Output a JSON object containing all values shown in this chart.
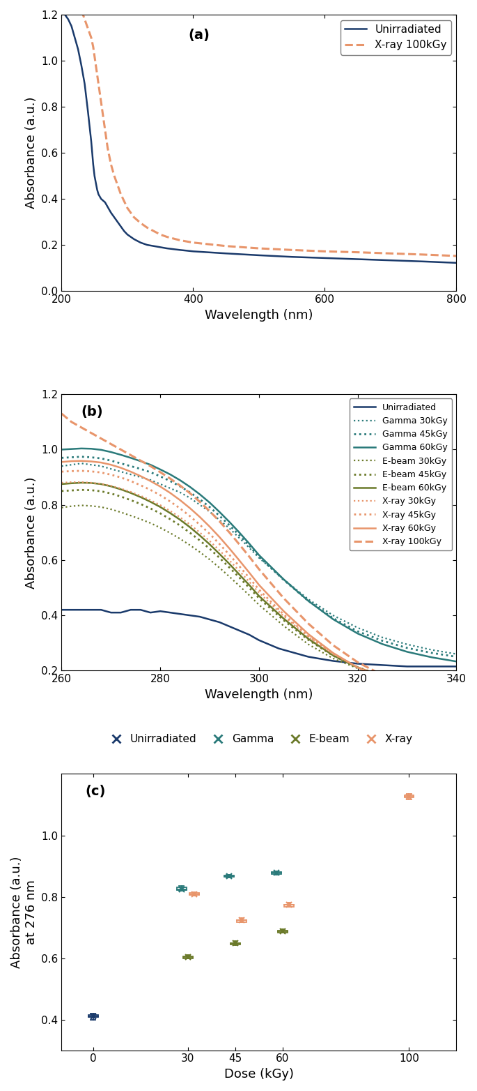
{
  "panel_a": {
    "title": "(a)",
    "xlim": [
      200,
      800
    ],
    "ylim": [
      0,
      1.2
    ],
    "xlabel": "Wavelength (nm)",
    "ylabel": "Absorbance (a.u.)",
    "xticks": [
      200,
      400,
      600,
      800
    ],
    "yticks": [
      0,
      0.2,
      0.4,
      0.6,
      0.8,
      1.0,
      1.2
    ],
    "unirradiated_x": [
      200,
      205,
      210,
      215,
      220,
      225,
      230,
      235,
      240,
      245,
      248,
      250,
      252,
      254,
      256,
      258,
      260,
      262,
      264,
      266,
      268,
      270,
      275,
      280,
      285,
      290,
      295,
      300,
      310,
      320,
      330,
      340,
      350,
      360,
      380,
      400,
      450,
      500,
      550,
      600,
      650,
      700,
      750,
      800
    ],
    "unirradiated_y": [
      1.22,
      1.2,
      1.18,
      1.15,
      1.1,
      1.05,
      0.98,
      0.9,
      0.78,
      0.65,
      0.55,
      0.5,
      0.47,
      0.44,
      0.42,
      0.41,
      0.4,
      0.395,
      0.39,
      0.385,
      0.375,
      0.365,
      0.34,
      0.32,
      0.3,
      0.28,
      0.26,
      0.245,
      0.225,
      0.21,
      0.2,
      0.195,
      0.19,
      0.185,
      0.178,
      0.172,
      0.163,
      0.155,
      0.148,
      0.143,
      0.138,
      0.133,
      0.128,
      0.122
    ],
    "xray100_x": [
      230,
      235,
      240,
      245,
      248,
      250,
      252,
      254,
      256,
      258,
      260,
      262,
      264,
      266,
      268,
      270,
      275,
      280,
      285,
      290,
      295,
      300,
      310,
      320,
      330,
      340,
      350,
      360,
      380,
      400,
      450,
      500,
      550,
      600,
      650,
      700,
      750,
      800
    ],
    "xray100_y": [
      1.22,
      1.18,
      1.14,
      1.1,
      1.06,
      1.02,
      0.98,
      0.94,
      0.9,
      0.86,
      0.82,
      0.78,
      0.74,
      0.7,
      0.66,
      0.62,
      0.55,
      0.5,
      0.46,
      0.42,
      0.39,
      0.36,
      0.32,
      0.295,
      0.275,
      0.26,
      0.245,
      0.235,
      0.22,
      0.21,
      0.195,
      0.185,
      0.178,
      0.172,
      0.168,
      0.163,
      0.158,
      0.152
    ],
    "color_unirradiated": "#1a3a6b",
    "color_xray100": "#e8956b",
    "ls_unirradiated": "solid",
    "ls_xray100": "dashed",
    "lw_unirradiated": 1.8,
    "lw_xray100": 2.2,
    "legend_labels": [
      "Unirradiated",
      "X-ray 100kGy"
    ]
  },
  "panel_b": {
    "title": "(b)",
    "xlim": [
      260,
      340
    ],
    "ylim": [
      0.2,
      1.2
    ],
    "xlabel": "Wavelength (nm)",
    "ylabel": "Absorbance (a.u.)",
    "xticks": [
      260,
      280,
      300,
      320,
      340
    ],
    "yticks": [
      0.2,
      0.4,
      0.6,
      0.8,
      1.0,
      1.2
    ],
    "curves": [
      {
        "label": "Unirradiated",
        "color": "#1a3a6b",
        "ls": "solid",
        "lw": 1.8,
        "x": [
          260,
          262,
          264,
          266,
          268,
          270,
          272,
          274,
          276,
          278,
          280,
          282,
          284,
          286,
          288,
          290,
          292,
          294,
          296,
          298,
          300,
          302,
          304,
          306,
          308,
          310,
          315,
          320,
          325,
          330,
          335,
          340
        ],
        "y": [
          0.42,
          0.42,
          0.42,
          0.42,
          0.42,
          0.41,
          0.41,
          0.42,
          0.42,
          0.41,
          0.415,
          0.41,
          0.405,
          0.4,
          0.395,
          0.385,
          0.375,
          0.36,
          0.345,
          0.33,
          0.31,
          0.295,
          0.28,
          0.27,
          0.26,
          0.25,
          0.235,
          0.225,
          0.22,
          0.215,
          0.215,
          0.215
        ]
      },
      {
        "label": "Gamma 30kGy",
        "color": "#2a7a7a",
        "ls": "dotted",
        "lw": 1.6,
        "x": [
          260,
          262,
          264,
          266,
          268,
          270,
          272,
          274,
          276,
          278,
          280,
          282,
          284,
          286,
          288,
          290,
          292,
          294,
          296,
          298,
          300,
          305,
          310,
          315,
          320,
          325,
          330,
          335,
          340
        ],
        "y": [
          0.94,
          0.945,
          0.95,
          0.945,
          0.94,
          0.93,
          0.92,
          0.91,
          0.9,
          0.89,
          0.875,
          0.86,
          0.845,
          0.825,
          0.8,
          0.775,
          0.745,
          0.715,
          0.68,
          0.645,
          0.608,
          0.53,
          0.458,
          0.4,
          0.355,
          0.32,
          0.295,
          0.275,
          0.26
        ]
      },
      {
        "label": "Gamma 45kGy",
        "color": "#2a7a7a",
        "ls": "dotted",
        "lw": 2.0,
        "x": [
          260,
          262,
          264,
          266,
          268,
          270,
          272,
          274,
          276,
          278,
          280,
          282,
          284,
          286,
          288,
          290,
          292,
          294,
          296,
          298,
          300,
          305,
          310,
          315,
          320,
          325,
          330,
          335,
          340
        ],
        "y": [
          0.97,
          0.972,
          0.974,
          0.972,
          0.968,
          0.96,
          0.95,
          0.94,
          0.93,
          0.918,
          0.903,
          0.886,
          0.867,
          0.845,
          0.82,
          0.792,
          0.76,
          0.726,
          0.69,
          0.652,
          0.612,
          0.528,
          0.452,
          0.39,
          0.342,
          0.308,
          0.282,
          0.264,
          0.25
        ]
      },
      {
        "label": "Gamma 60kGy",
        "color": "#2a7a7a",
        "ls": "solid",
        "lw": 1.8,
        "x": [
          260,
          262,
          264,
          266,
          268,
          270,
          272,
          274,
          276,
          278,
          280,
          282,
          284,
          286,
          288,
          290,
          292,
          294,
          296,
          298,
          300,
          305,
          310,
          315,
          320,
          325,
          330,
          335,
          340
        ],
        "y": [
          1.0,
          1.002,
          1.004,
          1.003,
          0.999,
          0.991,
          0.981,
          0.97,
          0.958,
          0.945,
          0.928,
          0.91,
          0.889,
          0.865,
          0.838,
          0.808,
          0.774,
          0.738,
          0.7,
          0.66,
          0.618,
          0.53,
          0.452,
          0.386,
          0.334,
          0.296,
          0.268,
          0.248,
          0.233
        ]
      },
      {
        "label": "E-beam 30kGy",
        "color": "#6b7a2a",
        "ls": "dotted",
        "lw": 1.6,
        "x": [
          260,
          262,
          264,
          266,
          268,
          270,
          272,
          274,
          276,
          278,
          280,
          282,
          284,
          286,
          288,
          290,
          292,
          294,
          296,
          298,
          300,
          305,
          310,
          315,
          320,
          325,
          330,
          335,
          340
        ],
        "y": [
          0.79,
          0.795,
          0.798,
          0.796,
          0.792,
          0.784,
          0.773,
          0.761,
          0.748,
          0.734,
          0.717,
          0.698,
          0.677,
          0.654,
          0.629,
          0.602,
          0.572,
          0.54,
          0.507,
          0.473,
          0.438,
          0.362,
          0.295,
          0.244,
          0.208,
          0.182,
          0.163,
          0.15,
          0.14
        ]
      },
      {
        "label": "E-beam 45kGy",
        "color": "#6b7a2a",
        "ls": "dotted",
        "lw": 2.0,
        "x": [
          260,
          262,
          264,
          266,
          268,
          270,
          272,
          274,
          276,
          278,
          280,
          282,
          284,
          286,
          288,
          290,
          292,
          294,
          296,
          298,
          300,
          305,
          310,
          315,
          320,
          325,
          330,
          335,
          340
        ],
        "y": [
          0.85,
          0.852,
          0.854,
          0.853,
          0.849,
          0.841,
          0.83,
          0.817,
          0.803,
          0.787,
          0.769,
          0.748,
          0.725,
          0.699,
          0.671,
          0.641,
          0.608,
          0.573,
          0.537,
          0.5,
          0.462,
          0.382,
          0.311,
          0.254,
          0.212,
          0.182,
          0.161,
          0.146,
          0.136
        ]
      },
      {
        "label": "E-beam 60kGy",
        "color": "#6b7a2a",
        "ls": "solid",
        "lw": 1.8,
        "x": [
          260,
          262,
          264,
          266,
          268,
          270,
          272,
          274,
          276,
          278,
          280,
          282,
          284,
          286,
          288,
          290,
          292,
          294,
          296,
          298,
          300,
          305,
          310,
          315,
          320,
          325,
          330,
          335,
          340
        ],
        "y": [
          0.875,
          0.878,
          0.88,
          0.879,
          0.875,
          0.867,
          0.856,
          0.843,
          0.828,
          0.811,
          0.792,
          0.77,
          0.746,
          0.719,
          0.689,
          0.657,
          0.622,
          0.586,
          0.548,
          0.51,
          0.47,
          0.388,
          0.315,
          0.255,
          0.211,
          0.18,
          0.159,
          0.144,
          0.134
        ]
      },
      {
        "label": "X-ray 30kGy",
        "color": "#e8956b",
        "ls": "dotted",
        "lw": 1.6,
        "x": [
          260,
          262,
          264,
          266,
          268,
          270,
          272,
          274,
          276,
          278,
          280,
          282,
          284,
          286,
          288,
          290,
          292,
          294,
          296,
          298,
          300,
          305,
          310,
          315,
          320,
          325,
          330,
          335,
          340
        ],
        "y": [
          0.88,
          0.882,
          0.882,
          0.88,
          0.876,
          0.869,
          0.859,
          0.847,
          0.833,
          0.817,
          0.799,
          0.778,
          0.755,
          0.729,
          0.7,
          0.669,
          0.635,
          0.599,
          0.561,
          0.522,
          0.482,
          0.397,
          0.322,
          0.26,
          0.213,
          0.179,
          0.156,
          0.14,
          0.128
        ]
      },
      {
        "label": "X-ray 45kGy",
        "color": "#e8956b",
        "ls": "dotted",
        "lw": 2.0,
        "x": [
          260,
          262,
          264,
          266,
          268,
          270,
          272,
          274,
          276,
          278,
          280,
          282,
          284,
          286,
          288,
          290,
          292,
          294,
          296,
          298,
          300,
          305,
          310,
          315,
          320,
          325,
          330,
          335,
          340
        ],
        "y": [
          0.92,
          0.922,
          0.923,
          0.921,
          0.917,
          0.909,
          0.899,
          0.886,
          0.871,
          0.854,
          0.835,
          0.812,
          0.787,
          0.759,
          0.728,
          0.695,
          0.658,
          0.619,
          0.578,
          0.536,
          0.493,
          0.403,
          0.325,
          0.261,
          0.212,
          0.177,
          0.153,
          0.137,
          0.125
        ]
      },
      {
        "label": "X-ray 60kGy",
        "color": "#e8956b",
        "ls": "solid",
        "lw": 1.8,
        "x": [
          260,
          262,
          264,
          266,
          268,
          270,
          272,
          274,
          276,
          278,
          280,
          282,
          284,
          286,
          288,
          290,
          292,
          294,
          296,
          298,
          300,
          305,
          310,
          315,
          320,
          325,
          330,
          335,
          340
        ],
        "y": [
          0.955,
          0.958,
          0.959,
          0.957,
          0.953,
          0.945,
          0.934,
          0.92,
          0.904,
          0.886,
          0.866,
          0.843,
          0.817,
          0.788,
          0.756,
          0.721,
          0.683,
          0.642,
          0.599,
          0.555,
          0.51,
          0.415,
          0.332,
          0.264,
          0.211,
          0.173,
          0.147,
          0.13,
          0.117
        ]
      },
      {
        "label": "X-ray 100kGy",
        "color": "#e8956b",
        "ls": "dashed",
        "lw": 2.2,
        "x": [
          260,
          262,
          264,
          266,
          268,
          270,
          272,
          274,
          276,
          278,
          280,
          282,
          284,
          286,
          288,
          290,
          292,
          294,
          296,
          298,
          300,
          305,
          310,
          315,
          320,
          325,
          330,
          335,
          340
        ],
        "y": [
          1.13,
          1.1,
          1.08,
          1.06,
          1.04,
          1.02,
          1.0,
          0.98,
          0.96,
          0.94,
          0.918,
          0.895,
          0.87,
          0.842,
          0.811,
          0.777,
          0.74,
          0.7,
          0.657,
          0.613,
          0.567,
          0.462,
          0.37,
          0.292,
          0.23,
          0.184,
          0.152,
          0.13,
          0.114
        ]
      }
    ]
  },
  "panel_c": {
    "title": "(c)",
    "xlabel": "Dose (kGy)",
    "ylabel": "Absorbance (a.u.)\nat 276 nm",
    "xlim": [
      -10,
      115
    ],
    "ylim": [
      0.3,
      1.2
    ],
    "xticks": [
      0,
      30,
      45,
      60,
      100
    ],
    "yticks": [
      0.4,
      0.6,
      0.8,
      1.0
    ],
    "data": {
      "unirradiated": {
        "dose": 0,
        "values": [
          0.4,
          0.408,
          0.415,
          0.42,
          0.41
        ],
        "color": "#1a3a6b"
      },
      "gamma_30": {
        "dose": 30,
        "values": [
          0.82,
          0.825,
          0.83,
          0.835,
          0.822
        ],
        "color": "#2a7a7a"
      },
      "gamma_45": {
        "dose": 45,
        "values": [
          0.862,
          0.867,
          0.872,
          0.87,
          0.865
        ],
        "color": "#2a7a7a"
      },
      "gamma_60": {
        "dose": 60,
        "values": [
          0.872,
          0.878,
          0.883,
          0.88,
          0.875
        ],
        "color": "#2a7a7a"
      },
      "ebeam_30": {
        "dose": 30,
        "values": [
          0.598,
          0.603,
          0.61,
          0.606,
          0.6
        ],
        "color": "#6b7a2a"
      },
      "ebeam_45": {
        "dose": 45,
        "values": [
          0.642,
          0.648,
          0.655,
          0.65,
          0.644
        ],
        "color": "#6b7a2a"
      },
      "ebeam_60": {
        "dose": 60,
        "values": [
          0.682,
          0.688,
          0.695,
          0.69,
          0.683
        ],
        "color": "#6b7a2a"
      },
      "xray_30": {
        "dose": 30,
        "values": [
          0.803,
          0.808,
          0.815,
          0.812,
          0.806
        ],
        "color": "#e8956b"
      },
      "xray_45": {
        "dose": 45,
        "values": [
          0.718,
          0.723,
          0.73,
          0.725,
          0.718
        ],
        "color": "#e8956b"
      },
      "xray_60": {
        "dose": 60,
        "values": [
          0.768,
          0.773,
          0.78,
          0.775,
          0.768
        ],
        "color": "#e8956b"
      },
      "xray_100": {
        "dose": 100,
        "values": [
          1.118,
          1.123,
          1.13,
          1.135,
          1.126
        ],
        "color": "#e8956b"
      }
    },
    "legend_items": [
      {
        "label": "Unirradiated",
        "color": "#1a3a6b"
      },
      {
        "label": "Gamma",
        "color": "#2a7a7a"
      },
      {
        "label": "E-beam",
        "color": "#6b7a2a"
      },
      {
        "label": "X-ray",
        "color": "#e8956b"
      }
    ],
    "x_offsets": {
      "unirradiated": 0,
      "gamma_30": -2,
      "gamma_45": -2,
      "gamma_60": -2,
      "ebeam_30": 0,
      "ebeam_45": 0,
      "ebeam_60": 0,
      "xray_30": 2,
      "xray_45": 2,
      "xray_60": 2,
      "xray_100": 0
    }
  }
}
